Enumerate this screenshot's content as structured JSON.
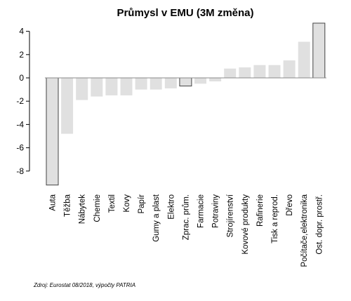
{
  "chart_data": {
    "type": "bar",
    "title": "Průmysl v EMU (3M změna)",
    "xlabel": "",
    "ylabel": "",
    "ylim": [
      -9.2,
      4.8
    ],
    "yticks": [
      "4",
      "2",
      "0",
      "-2",
      "-4",
      "-6",
      "-8"
    ],
    "categories": [
      "Auta",
      "Těžba",
      "Nábytek",
      "Chemie",
      "Textil",
      "Kovy",
      "Papír",
      "Gumy a plast",
      "Elektro",
      "Zprac. prům.",
      "Farmacie",
      "Potraviny",
      "Strojírenství",
      "Kovové produkty",
      "Rafinerie",
      "Tisk a reprod.",
      "Dřevo",
      "Počítače,elektronika",
      "Ost. dopr. prostř."
    ],
    "values": [
      -9.2,
      -4.8,
      -1.9,
      -1.6,
      -1.5,
      -1.5,
      -1.0,
      -1.0,
      -0.9,
      -0.7,
      -0.5,
      -0.3,
      0.8,
      0.9,
      1.1,
      1.1,
      1.5,
      3.1,
      4.7
    ],
    "highlighted": [
      "Auta",
      "Zprac. prům.",
      "Ost. dopr. prostř."
    ],
    "grid": false,
    "colors": {
      "bar": "#e0e0e0",
      "highlight_border": "#444444",
      "zero_line": "#888888"
    }
  },
  "source": "Zdroj: Eurostat 08/2018, výpočty PATRIA"
}
